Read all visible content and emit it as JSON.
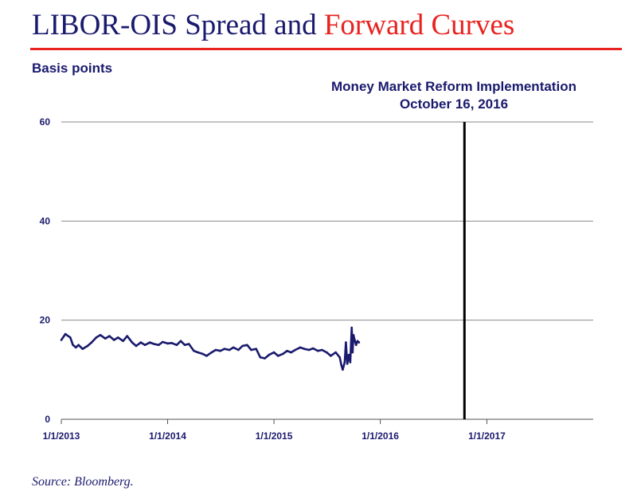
{
  "title_part1": "LIBOR-OIS Spread and ",
  "title_part2": "Forward Curves",
  "source": "Source: Bloomberg.",
  "colors": {
    "title_main": "#1a1a6e",
    "title_accent": "#e8231f",
    "series": "#1a1a6e",
    "event_line": "#000000"
  },
  "chart_data": {
    "type": "line",
    "ylabel": "Basis points",
    "xlabel": "",
    "ylim": [
      0,
      60
    ],
    "yticks": [
      0,
      20,
      40,
      60
    ],
    "xlim": [
      "2013-01-01",
      "2018-01-01"
    ],
    "xticks": [
      "1/1/2013",
      "1/1/2014",
      "1/1/2015",
      "1/1/2016",
      "1/1/2017"
    ],
    "grid": true,
    "event": {
      "label_line1": "Money Market Reform Implementation",
      "label_line2": "October 16, 2016",
      "date": "2016-10-16"
    },
    "series": [
      {
        "x": [
          "2013-01-01",
          "2013-01-15",
          "2013-02-01",
          "2013-02-10",
          "2013-02-20",
          "2013-03-01",
          "2013-03-15",
          "2013-04-01",
          "2013-04-15",
          "2013-05-01",
          "2013-05-15",
          "2013-06-01",
          "2013-06-15",
          "2013-07-01",
          "2013-07-15",
          "2013-08-01",
          "2013-08-15",
          "2013-09-01",
          "2013-09-15",
          "2013-10-01",
          "2013-10-15",
          "2013-11-01",
          "2013-11-15",
          "2013-12-01",
          "2013-12-15",
          "2014-01-01",
          "2014-01-15",
          "2014-02-01",
          "2014-02-15",
          "2014-03-01",
          "2014-03-15",
          "2014-04-01",
          "2014-04-15",
          "2014-05-01",
          "2014-05-15",
          "2014-06-01",
          "2014-06-15",
          "2014-07-01",
          "2014-07-15",
          "2014-08-01",
          "2014-08-15",
          "2014-09-01",
          "2014-09-15",
          "2014-10-01",
          "2014-10-15",
          "2014-11-01",
          "2014-11-15",
          "2014-12-01",
          "2014-12-15",
          "2015-01-01",
          "2015-01-15",
          "2015-02-01",
          "2015-02-15",
          "2015-03-01",
          "2015-03-15",
          "2015-04-01",
          "2015-04-15",
          "2015-05-01",
          "2015-05-15",
          "2015-06-01",
          "2015-06-15",
          "2015-07-01",
          "2015-07-15",
          "2015-08-01",
          "2015-08-15",
          "2015-08-20",
          "2015-08-25",
          "2015-09-01",
          "2015-09-05",
          "2015-09-10",
          "2015-09-15",
          "2015-09-20",
          "2015-09-25",
          "2015-09-28",
          "2015-10-01",
          "2015-10-05",
          "2015-10-10",
          "2015-10-15",
          "2015-10-20"
        ],
        "values": [
          16.0,
          17.2,
          16.5,
          15.0,
          14.5,
          15.0,
          14.2,
          14.8,
          15.5,
          16.5,
          17.0,
          16.3,
          16.8,
          16.0,
          16.5,
          15.8,
          16.8,
          15.5,
          14.8,
          15.5,
          15.0,
          15.5,
          15.2,
          15.0,
          15.6,
          15.3,
          15.4,
          15.0,
          15.8,
          15.0,
          15.2,
          13.8,
          13.5,
          13.2,
          12.8,
          13.5,
          14.0,
          13.8,
          14.2,
          14.0,
          14.5,
          14.0,
          14.8,
          15.0,
          14.0,
          14.2,
          12.5,
          12.3,
          13.0,
          13.5,
          12.8,
          13.2,
          13.8,
          13.5,
          14.0,
          14.5,
          14.2,
          14.0,
          14.3,
          13.8,
          14.0,
          13.5,
          12.8,
          13.5,
          12.5,
          11.0,
          10.0,
          11.5,
          15.5,
          11.2,
          13.0,
          11.5,
          18.5,
          13.5,
          17.0,
          16.0,
          15.0,
          15.8,
          15.5
        ]
      }
    ]
  }
}
